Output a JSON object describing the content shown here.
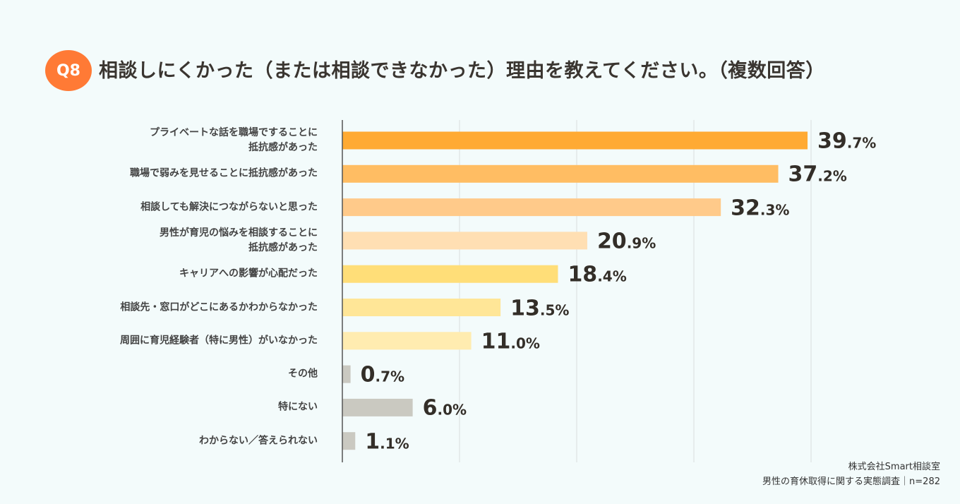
{
  "header": {
    "badge": "Q8",
    "title": "相談しにくかった（または相談できなかった）理由を教えてください。（複数回答）"
  },
  "chart_data": {
    "type": "bar",
    "orientation": "horizontal",
    "title": "相談しにくかった（または相談できなかった）理由を教えてください。（複数回答）",
    "categories": [
      "プライベートな話を職場ですることに\n抵抗感があった",
      "職場で弱みを見せることに抵抗感があった",
      "相談しても解決につながらないと思った",
      "男性が育児の悩みを相談することに\n抵抗感があった",
      "キャリアへの影響が心配だった",
      "相談先・窓口がどこにあるかわからなかった",
      "周囲に育児経験者（特に男性）がいなかった",
      "その他",
      "特にない",
      "わからない／答えられない"
    ],
    "values": [
      39.7,
      37.2,
      32.3,
      20.9,
      18.4,
      13.5,
      11.0,
      0.7,
      6.0,
      1.1
    ],
    "value_labels": [
      [
        "39",
        ".7%"
      ],
      [
        "37",
        ".2%"
      ],
      [
        "32",
        ".3%"
      ],
      [
        "20",
        ".9%"
      ],
      [
        "18",
        ".4%"
      ],
      [
        "13",
        ".5%"
      ],
      [
        "11",
        ".0%"
      ],
      [
        "0",
        ".7%"
      ],
      [
        "6",
        ".0%"
      ],
      [
        "1",
        ".1%"
      ]
    ],
    "colors": [
      "#ffaa33",
      "#ffbd63",
      "#ffca8a",
      "#ffdfb3",
      "#ffde78",
      "#ffe697",
      "#ffecb0",
      "#cac9c1",
      "#cac9c1",
      "#cac9c1"
    ],
    "xlim": [
      0,
      40
    ],
    "grid": true
  },
  "footer": {
    "source": "株式会社Smart相談室",
    "survey": "男性の育休取得に関する実態調査｜n=282"
  }
}
